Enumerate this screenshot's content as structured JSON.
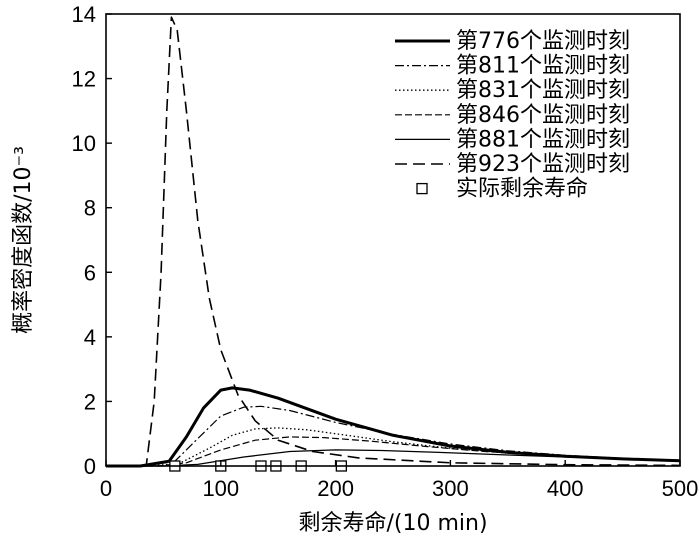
{
  "chart_data": {
    "type": "line",
    "xlabel": "剩余寿命/(10 min)",
    "ylabel": "概率密度函数/10⁻³",
    "xlim": [
      0,
      500
    ],
    "ylim": [
      0,
      14
    ],
    "x_ticks": [
      0,
      100,
      200,
      300,
      400,
      500
    ],
    "y_ticks": [
      0,
      2,
      4,
      6,
      8,
      10,
      12,
      14
    ],
    "grid": false,
    "legend_position": "top-right",
    "series": [
      {
        "name": "第776个监测时刻",
        "style": "thick-solid",
        "points": [
          [
            0,
            0
          ],
          [
            30,
            0
          ],
          [
            55,
            0.15
          ],
          [
            70,
            0.9
          ],
          [
            85,
            1.8
          ],
          [
            100,
            2.35
          ],
          [
            110,
            2.42
          ],
          [
            125,
            2.35
          ],
          [
            150,
            2.1
          ],
          [
            200,
            1.45
          ],
          [
            250,
            0.95
          ],
          [
            300,
            0.62
          ],
          [
            350,
            0.42
          ],
          [
            400,
            0.3
          ],
          [
            450,
            0.22
          ],
          [
            500,
            0.16
          ]
        ]
      },
      {
        "name": "第811个监测时刻",
        "style": "dash-dot",
        "points": [
          [
            0,
            0
          ],
          [
            35,
            0
          ],
          [
            60,
            0.15
          ],
          [
            80,
            0.85
          ],
          [
            100,
            1.55
          ],
          [
            120,
            1.82
          ],
          [
            135,
            1.85
          ],
          [
            160,
            1.72
          ],
          [
            200,
            1.35
          ],
          [
            250,
            0.98
          ],
          [
            300,
            0.68
          ],
          [
            350,
            0.47
          ],
          [
            400,
            0.33
          ],
          [
            450,
            0.24
          ],
          [
            500,
            0.17
          ]
        ]
      },
      {
        "name": "第831个监测时刻",
        "style": "dotted",
        "points": [
          [
            0,
            0
          ],
          [
            40,
            0
          ],
          [
            65,
            0.1
          ],
          [
            90,
            0.55
          ],
          [
            110,
            0.95
          ],
          [
            130,
            1.15
          ],
          [
            150,
            1.18
          ],
          [
            175,
            1.12
          ],
          [
            210,
            0.95
          ],
          [
            250,
            0.75
          ],
          [
            300,
            0.55
          ],
          [
            350,
            0.4
          ],
          [
            400,
            0.29
          ],
          [
            450,
            0.21
          ],
          [
            500,
            0.15
          ]
        ]
      },
      {
        "name": "第846个监测时刻",
        "style": "long-dash",
        "points": [
          [
            0,
            0
          ],
          [
            45,
            0
          ],
          [
            70,
            0.1
          ],
          [
            100,
            0.5
          ],
          [
            130,
            0.8
          ],
          [
            160,
            0.9
          ],
          [
            190,
            0.88
          ],
          [
            230,
            0.77
          ],
          [
            280,
            0.6
          ],
          [
            330,
            0.45
          ],
          [
            380,
            0.34
          ],
          [
            430,
            0.25
          ],
          [
            500,
            0.17
          ]
        ]
      },
      {
        "name": "第881个监测时刻",
        "style": "thin-solid",
        "points": [
          [
            0,
            0
          ],
          [
            50,
            0
          ],
          [
            80,
            0.05
          ],
          [
            120,
            0.28
          ],
          [
            160,
            0.45
          ],
          [
            200,
            0.5
          ],
          [
            240,
            0.48
          ],
          [
            290,
            0.42
          ],
          [
            350,
            0.34
          ],
          [
            410,
            0.27
          ],
          [
            460,
            0.22
          ],
          [
            500,
            0.18
          ]
        ]
      },
      {
        "name": "第923个监测时刻",
        "style": "wide-dash",
        "points": [
          [
            0,
            0
          ],
          [
            35,
            0
          ],
          [
            42,
            2.0
          ],
          [
            48,
            6.0
          ],
          [
            53,
            11.0
          ],
          [
            57,
            13.9
          ],
          [
            62,
            13.5
          ],
          [
            70,
            11.0
          ],
          [
            80,
            7.6
          ],
          [
            90,
            5.2
          ],
          [
            100,
            3.6
          ],
          [
            115,
            2.2
          ],
          [
            130,
            1.4
          ],
          [
            150,
            0.8
          ],
          [
            180,
            0.45
          ],
          [
            220,
            0.25
          ],
          [
            300,
            0.1
          ],
          [
            400,
            0.04
          ],
          [
            500,
            0.02
          ]
        ]
      }
    ],
    "actual_rul": {
      "name": "实际剩余寿命",
      "marker": "square",
      "x": [
        60,
        100,
        135,
        148,
        170,
        205
      ],
      "y": [
        0,
        0,
        0,
        0,
        0,
        0
      ]
    }
  }
}
